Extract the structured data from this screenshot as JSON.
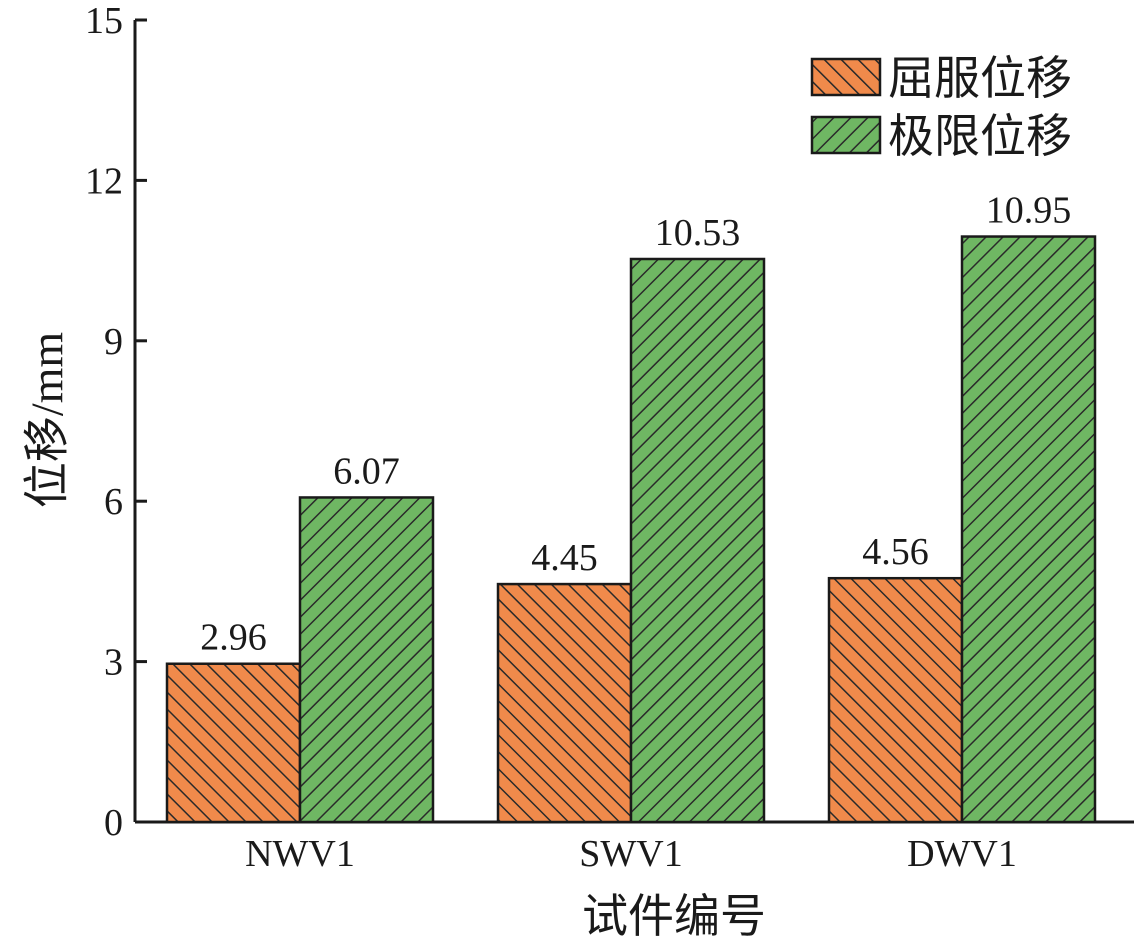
{
  "chart_data": {
    "type": "bar",
    "categories": [
      "NWV1",
      "SWV1",
      "DWV1"
    ],
    "series": [
      {
        "name": "屈服位移",
        "values": [
          2.96,
          4.45,
          4.56
        ],
        "labels": [
          "2.96",
          "4.45",
          "4.56"
        ],
        "color": "#f08a4b",
        "pattern": "backslash-hatch"
      },
      {
        "name": "极限位移",
        "values": [
          6.07,
          10.53,
          10.95
        ],
        "labels": [
          "6.07",
          "10.53",
          "10.95"
        ],
        "color": "#6fb763",
        "pattern": "slash-hatch"
      }
    ],
    "xlabel": "试件编号",
    "ylabel": "位移/mm",
    "ylim": [
      0,
      15
    ],
    "yticks": [
      0,
      3,
      6,
      9,
      12,
      15
    ],
    "ytick_labels": [
      "0",
      "3",
      "6",
      "9",
      "12",
      "15"
    ],
    "grid": false,
    "legend_position": "top-right"
  }
}
